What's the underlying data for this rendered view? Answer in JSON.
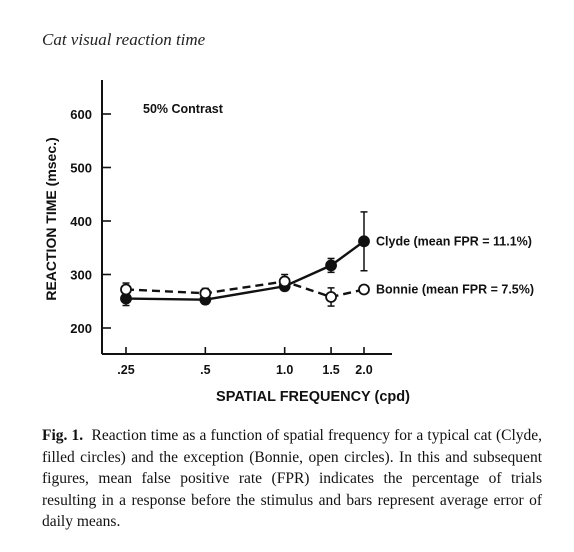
{
  "page": {
    "heading": "Cat visual reaction time"
  },
  "chart_data": {
    "type": "line",
    "annotation": "50% Contrast",
    "xlabel": "SPATIAL FREQUENCY (cpd)",
    "ylabel": "REACTION TIME (msec.)",
    "x_scale": "log",
    "xlim": [
      0.25,
      2.0
    ],
    "ylim": [
      180,
      640
    ],
    "x_ticks": [
      0.25,
      0.5,
      1.0,
      1.5,
      2.0
    ],
    "x_tick_labels": [
      ".25",
      ".5",
      "1.0",
      "1.5",
      "2.0"
    ],
    "y_ticks": [
      200,
      300,
      400,
      500,
      600
    ],
    "y_tick_labels": [
      "200",
      "300",
      "400",
      "500",
      "600"
    ],
    "grid": false,
    "series": [
      {
        "name": "Clyde (mean FPR = 11.1%)",
        "marker": "filled-circle",
        "line_style": "solid",
        "x": [
          0.25,
          0.5,
          1.0,
          1.5,
          2.0
        ],
        "y": [
          255,
          253,
          278,
          317,
          362
        ],
        "error": [
          13,
          8,
          8,
          13,
          55
        ]
      },
      {
        "name": "Bonnie (mean FPR = 7.5%)",
        "marker": "open-circle",
        "line_style": "dashed",
        "x": [
          0.25,
          0.5,
          1.0,
          1.5,
          2.0
        ],
        "y": [
          272,
          265,
          287,
          258,
          272
        ],
        "error": [
          12,
          9,
          13,
          17,
          0
        ]
      }
    ]
  },
  "caption": {
    "label": "Fig. 1.",
    "text": "Reaction time as a function of spatial frequency for a typical cat (Clyde, filled circles) and the exception (Bonnie, open circles). In this and subsequent figures, mean false positive rate (FPR) indicates the percentage of trials resulting in a response before the stimulus and bars represent average error of daily means."
  }
}
